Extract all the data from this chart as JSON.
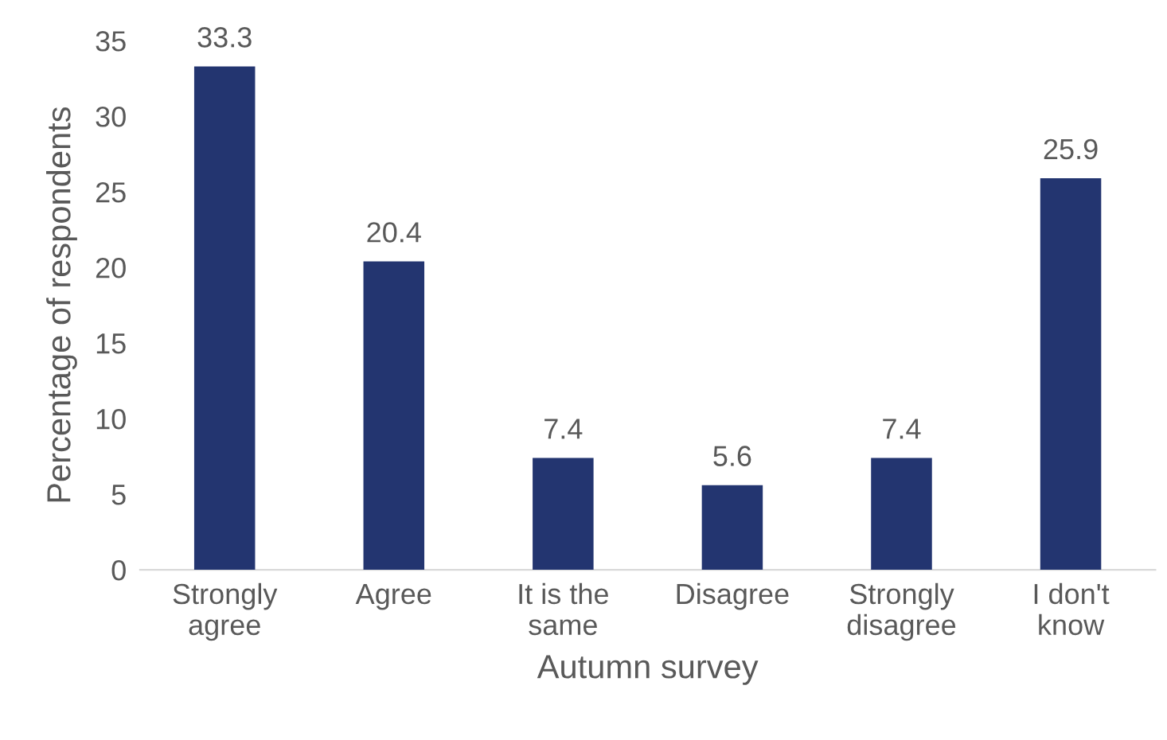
{
  "chart_data": {
    "type": "bar",
    "xlabel": "Autumn survey",
    "ylabel": "Percentage of respondents",
    "categories": [
      "Strongly\nagree",
      "Agree",
      "It is the\nsame",
      "Disagree",
      "Strongly\ndisagree",
      "I don't\nknow"
    ],
    "values": [
      33.3,
      20.4,
      7.4,
      5.6,
      7.4,
      25.9
    ],
    "color": "#233570",
    "ylim": [
      0,
      35
    ],
    "yticks": [
      0,
      5,
      10,
      15,
      20,
      25,
      30,
      35
    ],
    "grid": false,
    "data_labels": true
  }
}
